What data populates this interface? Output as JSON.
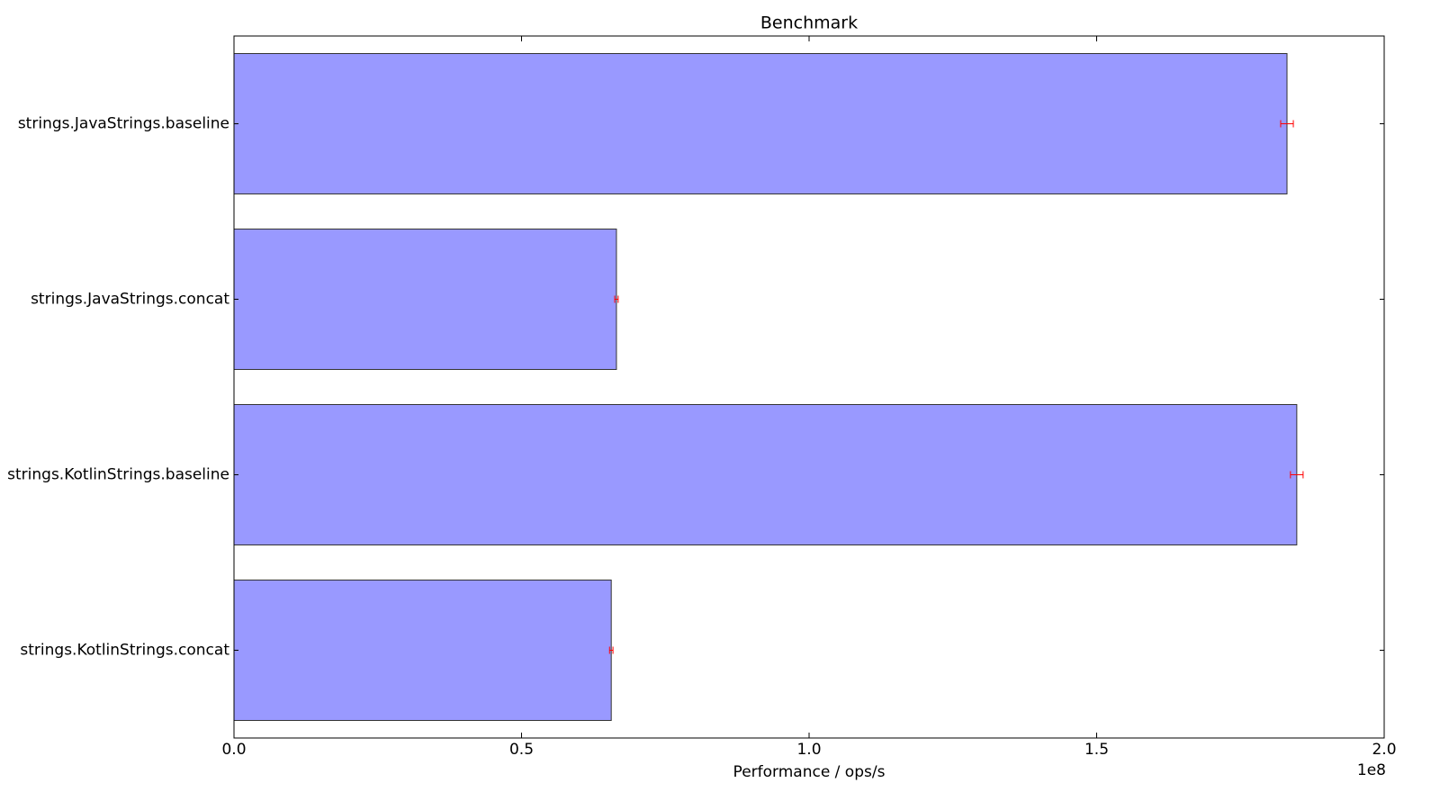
{
  "chart_data": {
    "type": "barh",
    "title": "Benchmark",
    "categories": [
      "strings.JavaStrings.baseline",
      "strings.JavaStrings.concat",
      "strings.KotlinStrings.baseline",
      "strings.KotlinStrings.concat"
    ],
    "values": [
      1.831,
      0.665,
      1.848,
      0.656
    ],
    "errors": [
      0.011,
      0.003,
      0.011,
      0.003
    ],
    "color": "#9999ff",
    "error_color": "#ff0000",
    "xlabel": "Performance / ops/s",
    "x_offset_label": "1e8",
    "xlim": [
      0,
      2
    ],
    "xticks": [
      {
        "value": 0,
        "label": "0.0"
      },
      0.5,
      {
        "value": 1,
        "label": "1.0"
      },
      1.5,
      {
        "value": 2,
        "label": "2.0"
      }
    ],
    "grid": false
  }
}
